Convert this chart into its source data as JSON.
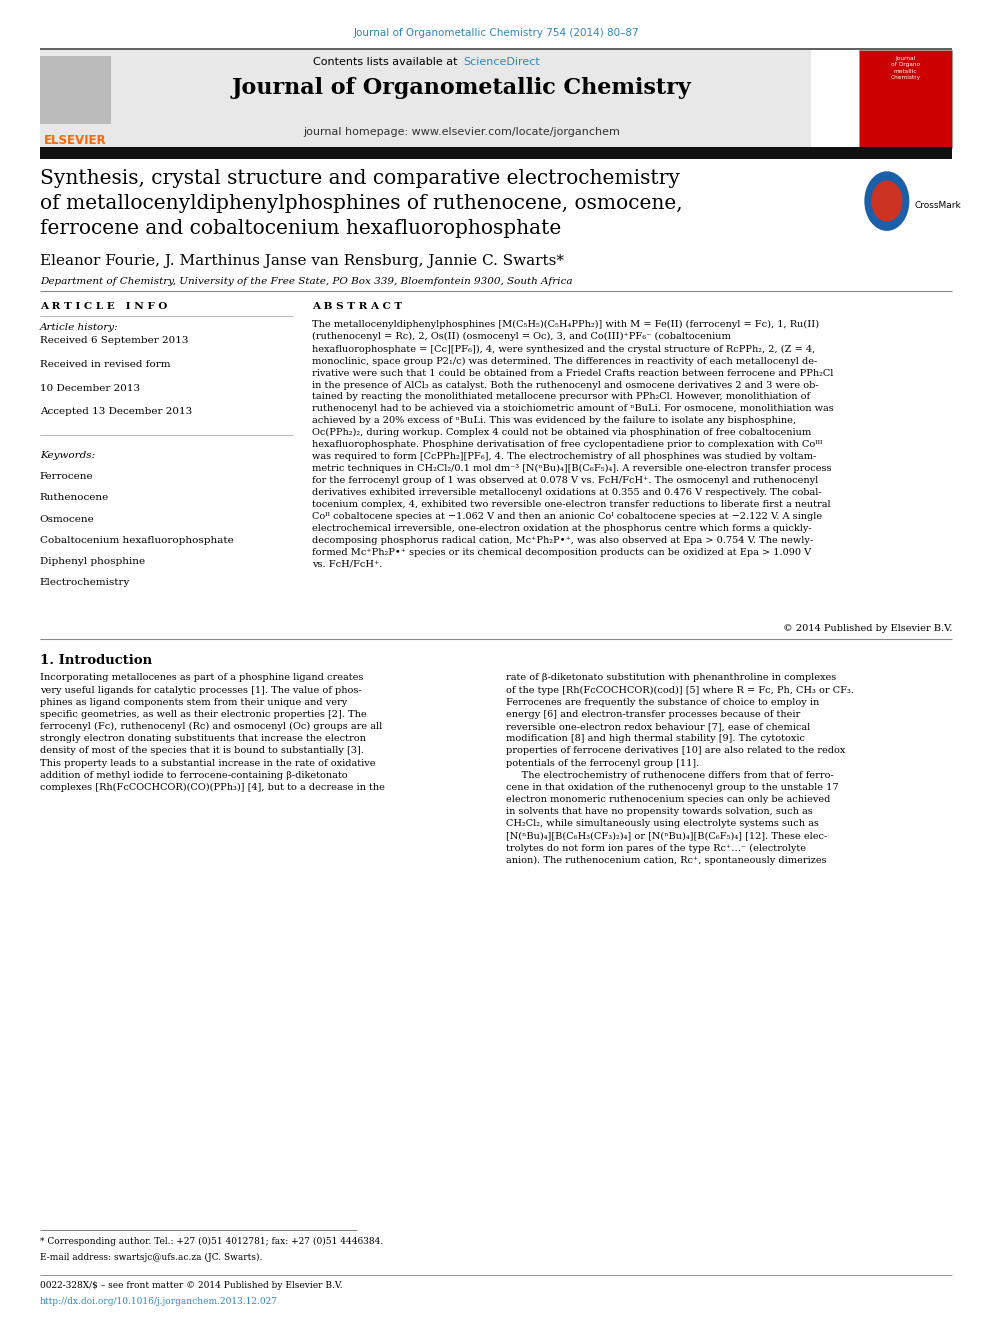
{
  "page_width": 9.92,
  "page_height": 13.23,
  "background_color": "#ffffff",
  "top_link_text": "Journal of Organometallic Chemistry 754 (2014) 80–87",
  "top_link_color": "#2e86c1",
  "journal_name": "Journal of Organometallic Chemistry",
  "contents_text": "Contents lists available at ",
  "sciencedirect_text": "ScienceDirect",
  "sciencedirect_color": "#2e86c1",
  "homepage_text": "journal homepage: www.elsevier.com/locate/jorganchem",
  "header_bg": "#e8e8e8",
  "elsevier_color": "#ff6600",
  "article_title": "Synthesis, crystal structure and comparative electrochemistry\nof metallocenyldiphenylphosphines of ruthenocene, osmocene,\nferrocene and cobaltocenium hexafluorophosphate",
  "authors": "Eleanor Fourie, J. Marthinus Janse van Rensburg, Jannie C. Swarts*",
  "affiliation": "Department of Chemistry, University of the Free State, PO Box 339, Bloemfontein 9300, South Africa",
  "article_info_label": "A R T I C L E   I N F O",
  "abstract_label": "A B S T R A C T",
  "article_history_label": "Article history:",
  "article_history_lines": [
    "Received 6 September 2013",
    "Received in revised form",
    "10 December 2013",
    "Accepted 13 December 2013"
  ],
  "keywords_label": "Keywords:",
  "keywords": [
    "Ferrocene",
    "Ruthenocene",
    "Osmocene",
    "Cobaltocenium hexafluorophosphate",
    "Diphenyl phosphine",
    "Electrochemistry"
  ],
  "abstract_text": "The metallocenyldiphenylphosphines [M(C₅H₅)(C₅H₄PPh₂)] with M = Fe(II) (ferrocenyl = Fc), 1, Ru(II)\n(ruthenocenyl = Rc), 2, Os(II) (osmocenyl = Oc), 3, and Co(III)⁺PF₆⁻ (cobaltocenium\nhexafluorophosphate = [Cc][PF₆]), 4, were synthesized and the crystal structure of RcPPh₂, 2, (Z = 4,\nmonoclinic, space group P2₁/c) was determined. The differences in reactivity of each metallocenyl de-\nrivative were such that 1 could be obtained from a Friedel Crafts reaction between ferrocene and PPh₂Cl\nin the presence of AlCl₃ as catalyst. Both the ruthenocenyl and osmocene derivatives 2 and 3 were ob-\ntained by reacting the monolithiated metallocene precursor with PPh₂Cl. However, monolithiation of\nruthenocenyl had to be achieved via a stoichiometric amount of ⁿBuLi. For osmocene, monolithiation was\nachieved by a 20% excess of ⁿBuLi. This was evidenced by the failure to isolate any bisphosphine,\nOc(PPh₂)₂, during workup. Complex 4 could not be obtained via phosphination of free cobaltocenium\nhexafluorophosphate. Phosphine derivatisation of free cyclopentadiene prior to complexation with Coᴵᴵᴵ\nwas required to form [CcPPh₂][PF₆], 4. The electrochemistry of all phosphines was studied by voltam-\nmetric techniques in CH₂Cl₂/0.1 mol dm⁻³ [N(ⁿBu)₄][B(C₆F₅)₄]. A reversible one-electron transfer process\nfor the ferrocenyl group of 1 was observed at 0.078 V vs. FcH/FcH⁺. The osmocenyl and ruthenocenyl\nderivatives exhibited irreversible metallocenyl oxidations at 0.355 and 0.476 V respectively. The cobal-\ntocenium complex, 4, exhibited two reversible one-electron transfer reductions to liberate first a neutral\nCoᴵᴵ cobaltocene species at −1.062 V and then an anionic Coᴵ cobaltocene species at −2.122 V. A single\nelectrochemical irreversible, one-electron oxidation at the phosphorus centre which forms a quickly-\ndecomposing phosphorus radical cation, Mc⁺Ph₂P•⁺, was also observed at Epa > 0.754 V. The newly-\nformed Mc⁺Ph₂P•⁺ species or its chemical decomposition products can be oxidized at Epa > 1.090 V\nvs. FcH/FcH⁺.",
  "copyright_text": "© 2014 Published by Elsevier B.V.",
  "intro_heading": "1. Introduction",
  "intro_col1": "Incorporating metallocenes as part of a phosphine ligand creates\nvery useful ligands for catalytic processes [1]. The value of phos-\nphines as ligand components stem from their unique and very\nspecific geometries, as well as their electronic properties [2]. The\nferrocenyl (Fc), ruthenocenyl (Rc) and osmocenyl (Oc) groups are all\nstrongly electron donating substituents that increase the electron\ndensity of most of the species that it is bound to substantially [3].\nThis property leads to a substantial increase in the rate of oxidative\naddition of methyl iodide to ferrocene-containing β-diketonato\ncomplexes [Rh(FcCOCHCOR)(CO)(PPh₃)] [4], but to a decrease in the",
  "intro_col2": "rate of β-diketonato substitution with phenanthroline in complexes\nof the type [Rh(FcCOCHCOR)(cod)] [5] where R = Fc, Ph, CH₃ or CF₃.\nFerrocenes are frequently the substance of choice to employ in\nenergy [6] and electron-transfer processes because of their\nreversible one-electron redox behaviour [7], ease of chemical\nmodification [8] and high thermal stability [9]. The cytotoxic\nproperties of ferrocene derivatives [10] are also related to the redox\npotentials of the ferrocenyl group [11].\n     The electrochemistry of ruthenocene differs from that of ferro-\ncene in that oxidation of the ruthenocenyl group to the unstable 17\nelectron monomeric ruthenocenium species can only be achieved\nin solvents that have no propensity towards solvation, such as\nCH₂Cl₂, while simultaneously using electrolyte systems such as\n[N(ⁿBu)₄][B(C₆H₃(CF₃)₂)₄] or [N(ⁿBu)₄][B(C₆F₅)₄] [12]. These elec-\ntrolytes do not form ion pares of the type Rc⁺…⁻ (electrolyte\nanion). The ruthenocenium cation, Rc⁺, spontaneously dimerizes",
  "footnote_asterisk": "* Corresponding author. Tel.: +27 (0)51 4012781; fax: +27 (0)51 4446384.",
  "footnote_email": "E-mail address: swartsjc@ufs.ac.za (JC. Swarts).",
  "issn_text": "0022-328X/$ – see front matter © 2014 Published by Elsevier B.V.",
  "doi_text": "http://dx.doi.org/10.1016/j.jorganchem.2013.12.027"
}
